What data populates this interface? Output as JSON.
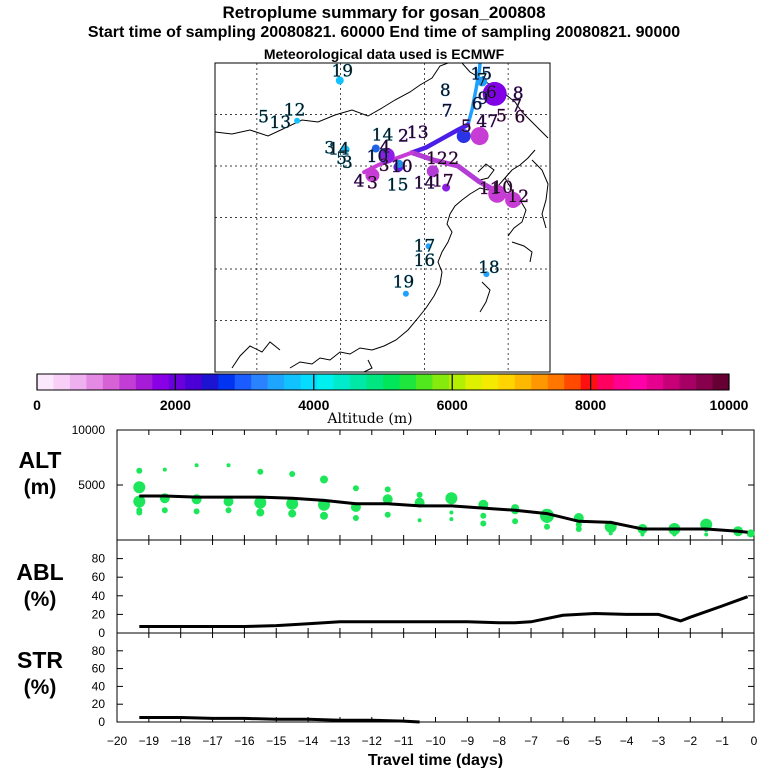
{
  "header": {
    "title": "Retroplume summary for gosan_200808",
    "sampling": "Start time of sampling 20080821. 60000     End time of sampling 20080821. 90000",
    "met": "Meteorological data used is ECMWF"
  },
  "colorbar": {
    "label": "Altitude (m)",
    "ticks": [
      "0",
      "2000",
      "4000",
      "6000",
      "8000",
      "10000"
    ],
    "range": [
      0,
      10000
    ],
    "colors": [
      "#fce8fc",
      "#f7cff7",
      "#efb0ef",
      "#e48ae4",
      "#d662d6",
      "#c23cd6",
      "#a61cd6",
      "#8a00e6",
      "#6a00dc",
      "#4a00d6",
      "#1c14d0",
      "#0034f0",
      "#1a5cff",
      "#2a82ff",
      "#1ea6ff",
      "#12c2ff",
      "#06dcff",
      "#00f0f0",
      "#00eacc",
      "#00e8a6",
      "#00e680",
      "#00e65a",
      "#1ee63c",
      "#52e81e",
      "#86ea0e",
      "#b4ee00",
      "#dcf000",
      "#f4ea00",
      "#ffd400",
      "#ffb800",
      "#ff9800",
      "#ff7600",
      "#ff4a00",
      "#ff1010",
      "#ff0060",
      "#ff0090",
      "#ff00a8",
      "#e60090",
      "#c80078",
      "#a60064",
      "#86004c",
      "#660034"
    ]
  },
  "map_labels": [
    {
      "t": "19",
      "lon": 110.2,
      "lat": 48.7,
      "c": "#1eb4e6"
    },
    {
      "t": "15",
      "lon": 126.8,
      "lat": 48.4,
      "c": "#1e64e6"
    },
    {
      "t": "7",
      "lon": 126.9,
      "lat": 47.8,
      "c": "#1eb4e6"
    },
    {
      "t": "8",
      "lon": 122.5,
      "lat": 46.8,
      "c": "#1e90e6"
    },
    {
      "t": "8",
      "lon": 131.2,
      "lat": 46.5,
      "c": "#8c1ee6"
    },
    {
      "t": "6",
      "lon": 128.0,
      "lat": 46.6,
      "c": "#8c1ee6"
    },
    {
      "t": "9",
      "lon": 127.0,
      "lat": 46.0,
      "c": "#1e4ce6"
    },
    {
      "t": "6",
      "lon": 126.3,
      "lat": 45.5,
      "c": "#1e4ce6"
    },
    {
      "t": "7",
      "lon": 131.0,
      "lat": 45.3,
      "c": "#8c1ee6"
    },
    {
      "t": "12",
      "lon": 104.5,
      "lat": 44.9,
      "c": "#1eb4e6"
    },
    {
      "t": "5",
      "lon": 100.8,
      "lat": 44.2,
      "c": "#1eb4e6"
    },
    {
      "t": "13",
      "lon": 102.8,
      "lat": 43.7,
      "c": "#1eb4e6"
    },
    {
      "t": "7",
      "lon": 122.7,
      "lat": 44.8,
      "c": "#1e4ce6"
    },
    {
      "t": "47",
      "lon": 127.5,
      "lat": 43.8,
      "c": "#8c1ee6"
    },
    {
      "t": "5",
      "lon": 125.0,
      "lat": 43.3,
      "c": "#c83cd6"
    },
    {
      "t": "5",
      "lon": 129.2,
      "lat": 44.3,
      "c": "#c83cd6"
    },
    {
      "t": "6",
      "lon": 131.4,
      "lat": 44.2,
      "c": "#c83cd6"
    },
    {
      "t": "14",
      "lon": 115.0,
      "lat": 42.5,
      "c": "#1eb4e6"
    },
    {
      "t": "2",
      "lon": 117.5,
      "lat": 42.4,
      "c": "#7a1ee6"
    },
    {
      "t": "13",
      "lon": 119.2,
      "lat": 42.7,
      "c": "#8c1ee6"
    },
    {
      "t": "3",
      "lon": 108.7,
      "lat": 41.2,
      "c": "#1eb4e6"
    },
    {
      "t": "14",
      "lon": 109.8,
      "lat": 41.1,
      "c": "#1eb4e6"
    },
    {
      "t": "4",
      "lon": 115.3,
      "lat": 41.3,
      "c": "#8c1ee6"
    },
    {
      "t": "10",
      "lon": 114.4,
      "lat": 40.4,
      "c": "#1e64e6"
    },
    {
      "t": "3",
      "lon": 110.8,
      "lat": 39.8,
      "c": "#1eb4e6"
    },
    {
      "t": "5",
      "lon": 110.1,
      "lat": 40.2,
      "c": "#1eb4e6"
    },
    {
      "t": "12",
      "lon": 121.5,
      "lat": 40.2,
      "c": "#c83cd6"
    },
    {
      "t": "2",
      "lon": 123.5,
      "lat": 40.2,
      "c": "#c83cd6"
    },
    {
      "t": "3",
      "lon": 115.2,
      "lat": 39.5,
      "c": "#c83cd6"
    },
    {
      "t": "10",
      "lon": 117.3,
      "lat": 39.4,
      "c": "#8c1ee6"
    },
    {
      "t": "4",
      "lon": 112.2,
      "lat": 38.0,
      "c": "#8c1ee6"
    },
    {
      "t": "3",
      "lon": 113.8,
      "lat": 37.8,
      "c": "#c83cd6"
    },
    {
      "t": "15",
      "lon": 116.8,
      "lat": 37.6,
      "c": "#1eb4e6"
    },
    {
      "t": "14",
      "lon": 120.0,
      "lat": 37.8,
      "c": "#8c1ee6"
    },
    {
      "t": "17",
      "lon": 122.2,
      "lat": 38.0,
      "c": "#c83cd6"
    },
    {
      "t": "11",
      "lon": 127.8,
      "lat": 37.3,
      "c": "#c83cd6"
    },
    {
      "t": "10",
      "lon": 129.3,
      "lat": 37.4,
      "c": "#c83cd6"
    },
    {
      "t": "12",
      "lon": 131.2,
      "lat": 36.5,
      "c": "#c83cd6"
    },
    {
      "t": "17",
      "lon": 120.0,
      "lat": 31.7,
      "c": "#1eb4e6"
    },
    {
      "t": "16",
      "lon": 120.0,
      "lat": 30.3,
      "c": "#1eb4e6"
    },
    {
      "t": "18",
      "lon": 127.7,
      "lat": 29.6,
      "c": "#1eb4e6"
    },
    {
      "t": "19",
      "lon": 117.5,
      "lat": 28.2,
      "c": "#1eb4e6"
    }
  ],
  "chart_data": [
    {
      "type": "scatter",
      "name": "ALT",
      "ylabel": "ALT\n(m)",
      "ylim": [
        0,
        10000
      ],
      "yticks": [
        5000,
        10000
      ],
      "xlim": [
        -20,
        0
      ],
      "median_x": [
        -19.3,
        -18.5,
        -17.5,
        -16.5,
        -15.5,
        -14.5,
        -13.5,
        -12.5,
        -11.5,
        -10.5,
        -9.5,
        -8.5,
        -7.5,
        -6.5,
        -5.5,
        -4.5,
        -3.5,
        -2.5,
        -1.5,
        -0.5,
        -0.2
      ],
      "median_y": [
        4000,
        4000,
        3900,
        3900,
        3900,
        3800,
        3600,
        3300,
        3300,
        3100,
        3100,
        2900,
        2700,
        2400,
        1700,
        1600,
        1000,
        1000,
        1000,
        800,
        700
      ],
      "points_x": [
        -19.3,
        -19.3,
        -19.3,
        -19.3,
        -18.5,
        -17.5,
        -16.5,
        -15.5,
        -14.5,
        -13.5,
        -12.5,
        -11.5,
        -10.5,
        -9.5,
        -8.5,
        -7.5,
        -6.5,
        -5.5,
        -4.5,
        -3.5,
        -2.5,
        -1.5,
        -0.5,
        -0.1,
        -18.5,
        -17.5,
        -16.5,
        -15.5,
        -14.5,
        -13.5,
        -12.5,
        -11.5,
        -10.5,
        -9.5,
        -8.5,
        -7.5,
        -6.5,
        -5.5,
        -4.5,
        -3.5,
        -2.5,
        -1.5,
        -0.5,
        -19.3,
        -18.5,
        -17.5,
        -16.5,
        -15.5,
        -14.5,
        -13.5,
        -12.5,
        -11.5,
        -10.5,
        -9.5,
        -8.5,
        -7.5,
        -6.5,
        -5.5,
        -4.5,
        -3.5,
        -2.5,
        -1.5
      ],
      "points_y": [
        6300,
        4800,
        3500,
        2500,
        3800,
        3700,
        3500,
        3400,
        3300,
        5500,
        3000,
        3700,
        3400,
        3800,
        3200,
        2700,
        2200,
        2000,
        1200,
        1000,
        1000,
        1400,
        800,
        600,
        6400,
        6800,
        6800,
        6200,
        6000,
        3200,
        4700,
        4600,
        4100,
        2500,
        2200,
        2900,
        1900,
        1400,
        1300,
        900,
        800,
        900,
        600,
        2700,
        2700,
        2600,
        2700,
        2500,
        2400,
        2200,
        2000,
        2300,
        1800,
        1900,
        1500,
        1700,
        1200,
        1000,
        600,
        500,
        500,
        500
      ],
      "points_r": [
        3,
        6,
        6,
        3,
        5,
        5,
        5,
        6,
        6,
        4,
        5,
        5,
        5,
        6,
        5,
        4,
        7,
        5,
        6,
        5,
        6,
        6,
        5,
        4,
        2,
        2,
        2,
        3,
        3,
        6,
        3,
        3,
        3,
        2,
        3,
        4,
        4,
        3,
        4,
        2,
        3,
        2,
        2,
        3,
        3,
        3,
        3,
        4,
        4,
        4,
        3,
        3,
        2,
        2,
        3,
        3,
        3,
        3,
        2,
        2,
        2,
        2
      ]
    },
    {
      "type": "line",
      "name": "ABL",
      "ylabel": "ABL\n(%)",
      "ylim": [
        0,
        100
      ],
      "yticks": [
        0,
        20,
        40,
        60,
        80
      ],
      "xlim": [
        -20,
        0
      ],
      "x": [
        -19.3,
        -17,
        -16,
        -15,
        -14,
        -13,
        -12,
        -11,
        -10,
        -9,
        -8,
        -7.5,
        -7,
        -6,
        -5,
        -4,
        -3,
        -2.3,
        -2,
        -1,
        -0.2
      ],
      "y": [
        7,
        7,
        7,
        8,
        10,
        12,
        12,
        12,
        12,
        12,
        11,
        11,
        12,
        19,
        21,
        20,
        20,
        13,
        17,
        29,
        39
      ]
    },
    {
      "type": "line",
      "name": "STR",
      "ylabel": "STR\n(%)",
      "ylim": [
        0,
        100
      ],
      "yticks": [
        0,
        20,
        40,
        60,
        80
      ],
      "xlim": [
        -20,
        0
      ],
      "x": [
        -19.3,
        -18,
        -17,
        -16,
        -15,
        -14,
        -13,
        -12,
        -11,
        -10.5
      ],
      "y": [
        5,
        5,
        4,
        4,
        3,
        3,
        2,
        2,
        1,
        0
      ],
      "xticks": [
        -20,
        -19,
        -18,
        -17,
        -16,
        -15,
        -14,
        -13,
        -12,
        -11,
        -10,
        -9,
        -8,
        -7,
        -6,
        -5,
        -4,
        -3,
        -2,
        -1,
        0
      ],
      "xtick_labels": [
        "−20",
        "−19",
        "−18",
        "−17",
        "−16",
        "−15",
        "−14",
        "−13",
        "−12",
        "−11",
        "−10",
        "−9",
        "−8",
        "−7",
        "−6",
        "−5",
        "−4",
        "−3",
        "−2",
        "−1",
        "0"
      ],
      "xlabel": "Travel time (days)"
    }
  ]
}
